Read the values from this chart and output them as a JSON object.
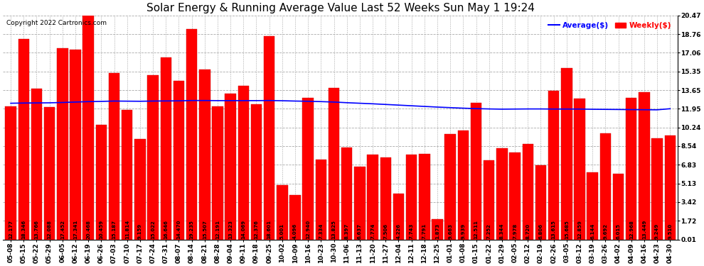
{
  "title": "Solar Energy & Running Average Value Last 52 Weeks Sun May 1 19:24",
  "copyright": "Copyright 2022 Cartronics.com",
  "legend_avg": "Average($)",
  "legend_weekly": "Weekly($)",
  "categories": [
    "05-08",
    "05-15",
    "05-22",
    "05-29",
    "06-05",
    "06-12",
    "06-19",
    "06-26",
    "07-03",
    "07-10",
    "07-17",
    "07-24",
    "07-31",
    "08-07",
    "08-14",
    "08-21",
    "08-28",
    "09-04",
    "09-11",
    "09-18",
    "09-25",
    "10-02",
    "10-09",
    "10-16",
    "10-23",
    "10-30",
    "11-06",
    "11-13",
    "11-20",
    "11-27",
    "12-04",
    "12-11",
    "12-18",
    "12-25",
    "01-01",
    "01-08",
    "01-15",
    "01-22",
    "01-29",
    "02-05",
    "02-12",
    "02-19",
    "02-26",
    "03-05",
    "03-12",
    "03-19",
    "03-26",
    "04-02",
    "04-09",
    "04-16",
    "04-23",
    "04-30"
  ],
  "bar_values": [
    12.177,
    18.346,
    13.766,
    12.088,
    17.452,
    17.341,
    20.468,
    10.459,
    15.187,
    11.814,
    9.159,
    15.022,
    16.646,
    14.47,
    19.235,
    15.507,
    12.191,
    13.323,
    14.069,
    12.376,
    18.601,
    5.001,
    4.096,
    12.94,
    7.334,
    13.825,
    8.397,
    6.637,
    7.774,
    7.506,
    4.226,
    7.743,
    7.791,
    1.873,
    9.663,
    9.939,
    12.511,
    7.252,
    8.344,
    7.978,
    8.72,
    6.806,
    13.615,
    15.685,
    12.859,
    6.144,
    9.692,
    6.015,
    12.968,
    13.449,
    9.249,
    9.51
  ],
  "avg_line_values": [
    12.45,
    12.47,
    12.48,
    12.49,
    12.52,
    12.56,
    12.6,
    12.62,
    12.65,
    12.64,
    12.63,
    12.65,
    12.66,
    12.67,
    12.7,
    12.7,
    12.69,
    12.69,
    12.69,
    12.69,
    12.7,
    12.68,
    12.65,
    12.63,
    12.6,
    12.56,
    12.5,
    12.45,
    12.4,
    12.34,
    12.28,
    12.22,
    12.16,
    12.1,
    12.05,
    12.0,
    11.96,
    11.93,
    11.91,
    11.92,
    11.93,
    11.93,
    11.92,
    11.92,
    11.92,
    11.9,
    11.89,
    11.88,
    11.87,
    11.86,
    11.85,
    11.95
  ],
  "bar_color": "#ff0000",
  "bar_edge_color": "#cc0000",
  "avg_line_color": "#0000ff",
  "yticks": [
    0.01,
    1.72,
    3.42,
    5.13,
    6.83,
    8.54,
    10.24,
    11.95,
    13.65,
    15.35,
    17.06,
    18.76,
    20.47
  ],
  "ymin": 0.0,
  "ymax": 20.47,
  "bg_color": "#ffffff",
  "plot_bg_color": "#ffffff",
  "grid_color": "#aaaaaa",
  "title_fontsize": 11,
  "tick_fontsize": 6.5,
  "bar_label_fontsize": 5.0,
  "copyright_fontsize": 6.5,
  "legend_fontsize": 7.5
}
